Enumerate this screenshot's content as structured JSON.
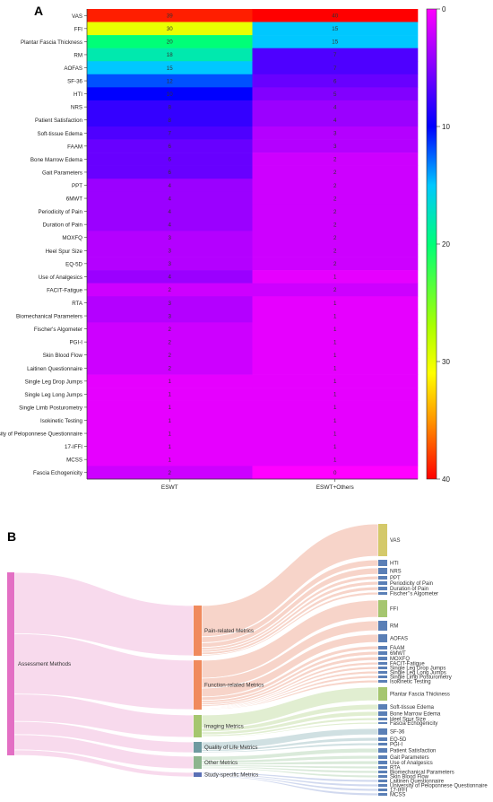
{
  "panel_a": {
    "label": "A",
    "chart_data": {
      "type": "heatmap",
      "rows": [
        "VAS",
        "FFI",
        "Plantar Fascia Thickness",
        "RM",
        "AOFAS",
        "SF-36",
        "HTI",
        "NRS",
        "Patient Satisfaction",
        "Soft-tissue Edema",
        "FAAM",
        "Bone Marrow Edema",
        "Gait Parameters",
        "PPT",
        "6MWT",
        "Periodicity of Pain",
        "Duration of Pain",
        "MOXFQ",
        "Heel Spur Size",
        "EQ-5D",
        "Use of Analgesics",
        "FACIT-Fatigue",
        "RTA",
        "Biomechanical Parameters",
        "Fischer's Algometer",
        "PGI-I",
        "Skin Blood Flow",
        "Laitinen Questionnaire",
        "Single Leg Drop Jumps",
        "Single Leg Long Jumps",
        "Single Limb Posturometry",
        "Isokinetic Testing",
        "University of Peloponnese Questionnaire",
        "17-IFFI",
        "MCSS",
        "Fascia Echogenicity"
      ],
      "columns": [
        "ESWT",
        "ESWT+Others"
      ],
      "values": [
        [
          39,
          40
        ],
        [
          30,
          15
        ],
        [
          20,
          15
        ],
        [
          18,
          7
        ],
        [
          15,
          7
        ],
        [
          12,
          6
        ],
        [
          10,
          5
        ],
        [
          8,
          4
        ],
        [
          8,
          4
        ],
        [
          7,
          3
        ],
        [
          6,
          3
        ],
        [
          6,
          2
        ],
        [
          6,
          2
        ],
        [
          4,
          2
        ],
        [
          4,
          2
        ],
        [
          4,
          2
        ],
        [
          4,
          2
        ],
        [
          3,
          2
        ],
        [
          3,
          2
        ],
        [
          3,
          2
        ],
        [
          4,
          1
        ],
        [
          2,
          2
        ],
        [
          3,
          1
        ],
        [
          3,
          1
        ],
        [
          2,
          1
        ],
        [
          2,
          1
        ],
        [
          2,
          1
        ],
        [
          2,
          1
        ],
        [
          1,
          1
        ],
        [
          1,
          1
        ],
        [
          1,
          1
        ],
        [
          1,
          1
        ],
        [
          1,
          1
        ],
        [
          1,
          1
        ],
        [
          1,
          1
        ],
        [
          2,
          0
        ]
      ],
      "colorbar": {
        "min": 0,
        "max": 40,
        "ticks": [
          0,
          10,
          20,
          30,
          40
        ],
        "reversed": true
      }
    }
  },
  "panel_b": {
    "label": "B",
    "chart_data": {
      "type": "sankey",
      "root": "Assessment Methods",
      "categories": [
        {
          "name": "Pain-related Metrics",
          "color": "#f08a5d",
          "items": [
            {
              "name": "VAS",
              "value": 79
            },
            {
              "name": "HTI",
              "value": 15
            },
            {
              "name": "NRS",
              "value": 12
            },
            {
              "name": "PPT",
              "value": 6
            },
            {
              "name": "Periodicity of Pain",
              "value": 6
            },
            {
              "name": "Duration of Pain",
              "value": 6
            },
            {
              "name": "Fischer’’s Algometer",
              "value": 3
            }
          ]
        },
        {
          "name": "Function-related Metrics",
          "color": "#f08a5d",
          "items": [
            {
              "name": "FFI",
              "value": 45
            },
            {
              "name": "RM",
              "value": 25
            },
            {
              "name": "AOFAS",
              "value": 22
            },
            {
              "name": "FAAM",
              "value": 9
            },
            {
              "name": "6MWT",
              "value": 6
            },
            {
              "name": "MOXFQ",
              "value": 5
            },
            {
              "name": "FACIT-Fatigue",
              "value": 4
            },
            {
              "name": "Single Leg Drop Jumps",
              "value": 2
            },
            {
              "name": "Single Leg Long Jumps",
              "value": 2
            },
            {
              "name": "Single Limb Posturometry",
              "value": 2
            },
            {
              "name": "Isokinetic Testing",
              "value": 2
            }
          ]
        },
        {
          "name": "Imaging Metrics",
          "color": "#a5c66f",
          "items": [
            {
              "name": "Plantar Fascia Thickness",
              "value": 35
            },
            {
              "name": "Soft-tissue Edema",
              "value": 10
            },
            {
              "name": "Bone Marrow Edema",
              "value": 8
            },
            {
              "name": "Heel Spur Size",
              "value": 5
            },
            {
              "name": "Fascia Echogenicity",
              "value": 2
            }
          ]
        },
        {
          "name": "Quality of Life Metrics",
          "color": "#6f9aa0",
          "items": [
            {
              "name": "SF-36",
              "value": 18
            },
            {
              "name": "EQ-5D",
              "value": 5
            },
            {
              "name": "PGI-I",
              "value": 3
            }
          ]
        },
        {
          "name": "Other Metrics",
          "color": "#8db58e",
          "items": [
            {
              "name": "Patient Satisfaction",
              "value": 12
            },
            {
              "name": "Gait Parameters",
              "value": 8
            },
            {
              "name": "Use of Analgesics",
              "value": 5
            },
            {
              "name": "RTA",
              "value": 4
            },
            {
              "name": "Biomechanical Parameters",
              "value": 4
            },
            {
              "name": "Skin Blood Flow",
              "value": 3
            }
          ]
        },
        {
          "name": "Study-specific Metrics",
          "color": "#5a6fb5",
          "items": [
            {
              "name": "Laitinen Questionnaire",
              "value": 3
            },
            {
              "name": "University of Peloponnese Questionnaire",
              "value": 2
            },
            {
              "name": "17-IFFI",
              "value": 2
            },
            {
              "name": "MCSS",
              "value": 2
            }
          ]
        }
      ]
    }
  },
  "colors": {
    "root": "#e36fc4",
    "link_pain": "#f6cdbf",
    "link_function": "#f6cdbf",
    "link_imaging": "#dcebc9",
    "link_qol": "#c8dadd",
    "link_other": "#d3e6d4",
    "link_study": "#c9d2ec",
    "root_link": "#f7d4ea",
    "vas_node": "#d4c96a",
    "ffi_node": "#a5c66f",
    "item_node": "#5a7fb6"
  }
}
